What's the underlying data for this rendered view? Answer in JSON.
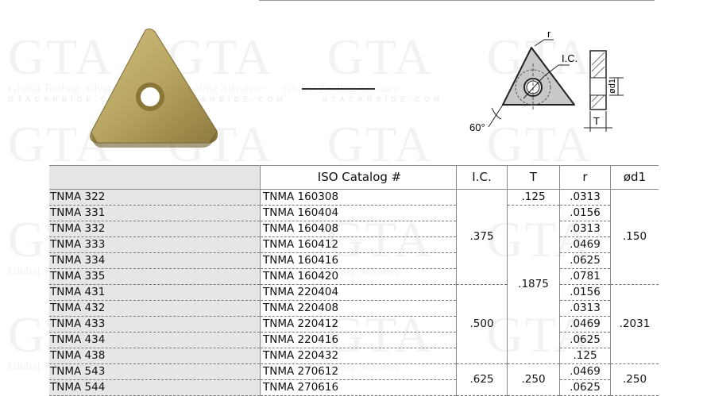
{
  "watermark": {
    "logo": "GTA",
    "tagline": "Global Tooling Advance",
    "site": "GTACARBIDE.COM"
  },
  "colors": {
    "insert_gold": "#b8a562",
    "header_bg": "#e6e6e6",
    "drawing_gray": "#c8c8c8"
  },
  "drawing": {
    "label_r": "r",
    "label_ic": "I.C.",
    "label_angle": "60°",
    "label_d1": "ød1",
    "label_t": "T"
  },
  "table": {
    "headers": [
      "",
      "ISO Catalog #",
      "I.C.",
      "T",
      "r",
      "ød1"
    ],
    "rows": [
      {
        "code": "TNMA 322",
        "iso": "TNMA 160308",
        "r": ".0313"
      },
      {
        "code": "TNMA 331",
        "iso": "TNMA 160404",
        "r": ".0156"
      },
      {
        "code": "TNMA 332",
        "iso": "TNMA 160408",
        "r": ".0313"
      },
      {
        "code": "TNMA 333",
        "iso": "TNMA 160412",
        "r": ".0469"
      },
      {
        "code": "TNMA 334",
        "iso": "TNMA 160416",
        "r": ".0625"
      },
      {
        "code": "TNMA 335",
        "iso": "TNMA 160420",
        "r": ".0781"
      },
      {
        "code": "TNMA 431",
        "iso": "TNMA 220404",
        "r": ".0156"
      },
      {
        "code": "TNMA 432",
        "iso": "TNMA 220408",
        "r": ".0313"
      },
      {
        "code": "TNMA 433",
        "iso": "TNMA 220412",
        "r": ".0469"
      },
      {
        "code": "TNMA 434",
        "iso": "TNMA 220416",
        "r": ".0625"
      },
      {
        "code": "TNMA 438",
        "iso": "TNMA 220432",
        "r": ".125"
      },
      {
        "code": "TNMA 543",
        "iso": "TNMA 270612",
        "r": ".0469"
      },
      {
        "code": "TNMA 544",
        "iso": "TNMA 270616",
        "r": ".0625"
      }
    ],
    "ic": [
      ".375",
      ".500",
      ".625"
    ],
    "t": [
      ".125",
      ".1875",
      ".250"
    ],
    "d1": [
      ".150",
      ".2031",
      ".250"
    ]
  }
}
